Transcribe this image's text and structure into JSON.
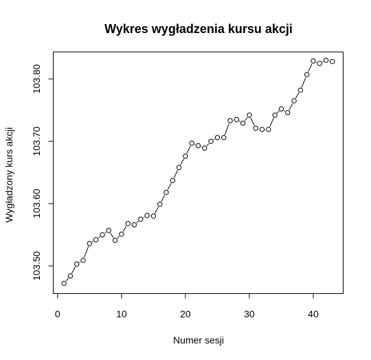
{
  "chart_data": {
    "type": "line",
    "title": "Wykres wygładzenia kursu akcji",
    "xlabel": "Numer sesji",
    "ylabel": "Wygładzony kurs akcji",
    "xlim": [
      1,
      43
    ],
    "ylim": [
      103.47,
      103.829
    ],
    "xticks": [
      0,
      10,
      20,
      30,
      40
    ],
    "yticks": [
      103.5,
      103.6,
      103.7,
      103.8
    ],
    "ytick_labels": [
      "103.50",
      "103.60",
      "103.70",
      "103.80"
    ],
    "style": "b",
    "grid": false,
    "series": [
      {
        "x": [
          1,
          2,
          3,
          4,
          5,
          6,
          7,
          8,
          9,
          10,
          11,
          12,
          13,
          14,
          15,
          16,
          17,
          18,
          19,
          20,
          21,
          22,
          23,
          24,
          25,
          26,
          27,
          28,
          29,
          30,
          31,
          32,
          33,
          34,
          35,
          36,
          37,
          38,
          39,
          40,
          41,
          42,
          43
        ],
        "values": [
          103.472,
          103.484,
          103.503,
          103.509,
          103.536,
          103.542,
          103.55,
          103.557,
          103.541,
          103.551,
          103.568,
          103.566,
          103.575,
          103.581,
          103.58,
          103.599,
          103.618,
          103.637,
          103.658,
          103.676,
          103.697,
          103.693,
          103.689,
          103.7,
          103.706,
          103.706,
          103.733,
          103.735,
          103.729,
          103.742,
          103.721,
          103.719,
          103.719,
          103.742,
          103.752,
          103.746,
          103.765,
          103.782,
          103.807,
          103.829,
          103.825,
          103.83,
          103.828
        ]
      }
    ]
  }
}
